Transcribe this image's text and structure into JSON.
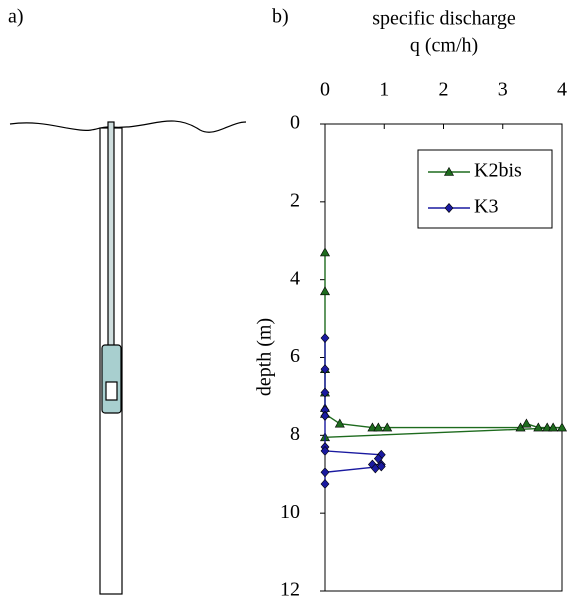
{
  "panel_labels": [
    "a)",
    "b)"
  ],
  "chart_data": {
    "type": "line",
    "xlabel": [
      "specific discharge",
      "q (cm/h)"
    ],
    "ylabel": "depth (m)",
    "xlim": [
      0,
      4
    ],
    "xticks": [
      0,
      1,
      2,
      3,
      4
    ],
    "ylim": [
      12,
      0
    ],
    "yticks": [
      0,
      2,
      4,
      6,
      8,
      10,
      12
    ],
    "legend": "upper right",
    "series": [
      {
        "name": "K2bis",
        "color": "#1e6b1e",
        "marker": "triangle",
        "x": [
          0,
          0,
          0,
          0,
          0,
          0,
          0.25,
          0.8,
          0.9,
          1.05,
          3.3,
          3.4,
          3.6,
          3.75,
          3.85,
          4,
          0
        ],
        "y": [
          3.3,
          4.3,
          6.3,
          6.9,
          7.3,
          7.45,
          7.7,
          7.8,
          7.8,
          7.8,
          7.8,
          7.7,
          7.8,
          7.8,
          7.8,
          7.8,
          8.05
        ]
      },
      {
        "name": "K3",
        "color": "#1a1aa0",
        "marker": "diamond",
        "x": [
          0,
          0,
          0,
          0,
          0,
          0,
          0,
          0.95,
          0.9,
          0.95,
          0.8,
          0.85,
          0.95,
          0,
          0
        ],
        "y": [
          5.5,
          6.3,
          6.9,
          7.35,
          7.5,
          8.3,
          8.4,
          8.5,
          8.6,
          8.75,
          8.75,
          8.85,
          8.8,
          8.95,
          9.25
        ]
      }
    ]
  }
}
